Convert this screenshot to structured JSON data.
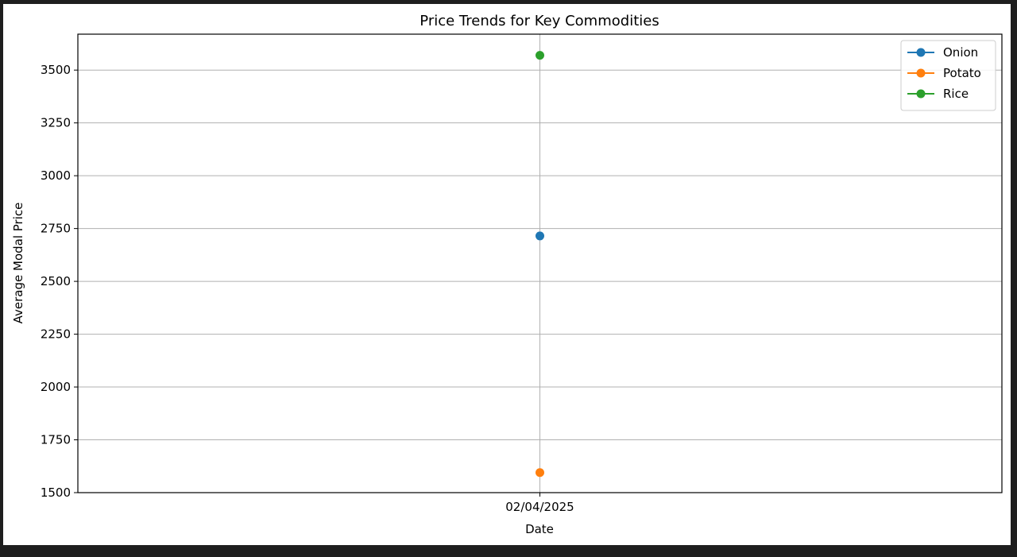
{
  "chart_data": {
    "type": "line",
    "title": "Price Trends for Key Commodities",
    "xlabel": "Date",
    "ylabel": "Average Modal Price",
    "categories": [
      "02/04/2025"
    ],
    "ylim": [
      1500,
      3670
    ],
    "yticks": [
      1500,
      1750,
      2000,
      2250,
      2500,
      2750,
      3000,
      3250,
      3500
    ],
    "grid": true,
    "legend_position": "top-right",
    "series": [
      {
        "name": "Onion",
        "color": "#1f77b4",
        "values": [
          2715
        ]
      },
      {
        "name": "Potato",
        "color": "#ff7f0e",
        "values": [
          1595
        ]
      },
      {
        "name": "Rice",
        "color": "#2ca02c",
        "values": [
          3570
        ]
      }
    ]
  }
}
